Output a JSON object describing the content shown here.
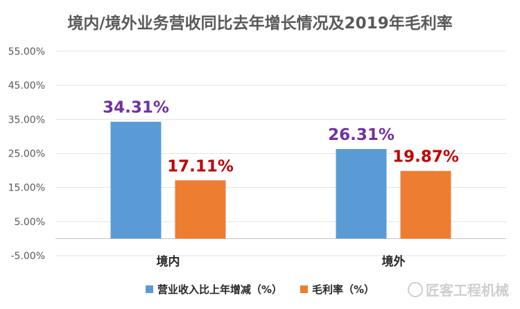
{
  "chart_data": {
    "type": "bar",
    "title": "境内/境外业务营收同比去年增长情况及2019年毛利率",
    "categories": [
      "境内",
      "境外"
    ],
    "series": [
      {
        "name": "营业收入比上年增减（%）",
        "values": [
          34.31,
          26.31
        ],
        "labels": [
          "34.31%",
          "26.31%"
        ],
        "color": "#5b9bd5",
        "label_color": "#7030a0"
      },
      {
        "name": "毛利率（%）",
        "values": [
          17.11,
          19.87
        ],
        "labels": [
          "17.11%",
          "19.87%"
        ],
        "color": "#ed7d31",
        "label_color": "#c00000"
      }
    ],
    "y_ticks": [
      "55.00%",
      "45.00%",
      "35.00%",
      "25.00%",
      "15.00%",
      "5.00%",
      "-5.00%"
    ],
    "y_tick_values": [
      55,
      45,
      35,
      25,
      15,
      5,
      -5
    ],
    "ylim": [
      -5,
      55
    ],
    "grid": true,
    "legend_position": "bottom"
  },
  "watermark": "匠客工程机械"
}
